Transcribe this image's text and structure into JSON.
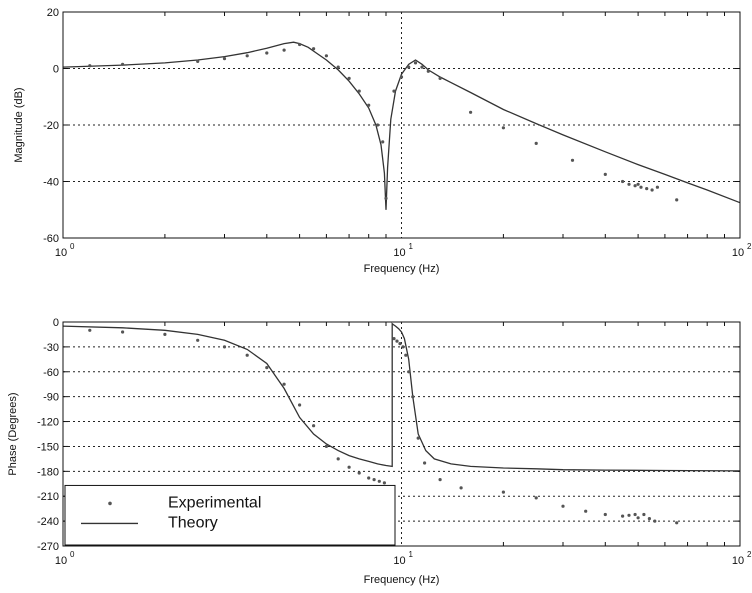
{
  "chart_data": [
    {
      "type": "line",
      "xscale": "log",
      "xlim": [
        1,
        100
      ],
      "ylim": [
        -60,
        20
      ],
      "xlabel": "Frequency (Hz)",
      "ylabel": "Magnitude (dB)",
      "xticks": [
        {
          "value": 1,
          "base": "10",
          "exp": "0"
        },
        {
          "value": 10,
          "base": "10",
          "exp": "1"
        },
        {
          "value": 100,
          "base": "10",
          "exp": "2"
        }
      ],
      "yticks": [
        {
          "value": 20,
          "label": "20"
        },
        {
          "value": 0,
          "label": "0"
        },
        {
          "value": -20,
          "label": "-20"
        },
        {
          "value": -40,
          "label": "-40"
        },
        {
          "value": -60,
          "label": "-60"
        }
      ],
      "grid": "dotted",
      "series": [
        {
          "kind": "line",
          "x": [
            1,
            1.5,
            2,
            2.5,
            3,
            3.5,
            4,
            4.5,
            4.8,
            5.0,
            5.3,
            5.6,
            6.0,
            6.5,
            7.0,
            7.5,
            8.0,
            8.4,
            8.7,
            8.9,
            9.0,
            9.1,
            9.3,
            9.6,
            10.0,
            10.5,
            11.0,
            11.5,
            12.0,
            13.0,
            14.0,
            16.0,
            20.0,
            25.0,
            30.0,
            40.0,
            50.0,
            60.0,
            70.0,
            80.0,
            100.0
          ],
          "y": [
            0.5,
            1.2,
            2.0,
            3.0,
            4.2,
            5.6,
            7.2,
            8.8,
            9.3,
            8.8,
            7.5,
            5.5,
            3.0,
            -0.5,
            -4.5,
            -9.0,
            -14.0,
            -20.0,
            -27.0,
            -37.0,
            -50.0,
            -35.0,
            -18.0,
            -8.0,
            -2.0,
            1.5,
            3.0,
            1.5,
            -0.5,
            -3.0,
            -5.0,
            -8.5,
            -14.5,
            -19.5,
            -23.5,
            -29.5,
            -34.0,
            -37.5,
            -40.5,
            -43.0,
            -47.5
          ]
        },
        {
          "kind": "points",
          "x": [
            1.2,
            1.5,
            2.5,
            3.0,
            3.5,
            4.0,
            4.5,
            5.0,
            5.5,
            6.0,
            6.5,
            7.0,
            7.5,
            8.0,
            8.5,
            8.8,
            9.0,
            9.5,
            10.0,
            10.5,
            11.0,
            11.5,
            12.0,
            13.0,
            16.0,
            20.0,
            25.0,
            32.0,
            40.0,
            45.0,
            47.0,
            49.0,
            50.0,
            51.0,
            53.0,
            55.0,
            57.0,
            65.0
          ],
          "y": [
            1.0,
            1.5,
            2.5,
            3.5,
            4.5,
            5.5,
            6.5,
            8.5,
            7.0,
            4.5,
            0.5,
            -3.5,
            -8.0,
            -13.0,
            -20.0,
            -26.0,
            -46.0,
            -8.0,
            -3.0,
            0.5,
            2.0,
            0.5,
            -1.0,
            -3.5,
            -15.5,
            -21.0,
            -26.5,
            -32.5,
            -37.5,
            -40.0,
            -41.0,
            -41.5,
            -41.0,
            -42.0,
            -42.5,
            -43.0,
            -42.0,
            -46.5
          ]
        }
      ]
    },
    {
      "type": "line",
      "xscale": "log",
      "xlim": [
        1,
        100
      ],
      "ylim": [
        -270,
        0
      ],
      "xlabel": "Frequency (Hz)",
      "ylabel": "Phase (Degrees)",
      "xticks": [
        {
          "value": 1,
          "base": "10",
          "exp": "0"
        },
        {
          "value": 10,
          "base": "10",
          "exp": "1"
        },
        {
          "value": 100,
          "base": "10",
          "exp": "2"
        }
      ],
      "yticks": [
        {
          "value": 0,
          "label": "0"
        },
        {
          "value": -30,
          "label": "-30"
        },
        {
          "value": -60,
          "label": "-60"
        },
        {
          "value": -90,
          "label": "-90"
        },
        {
          "value": -120,
          "label": "-120"
        },
        {
          "value": -150,
          "label": "-150"
        },
        {
          "value": -180,
          "label": "-180"
        },
        {
          "value": -210,
          "label": "-210"
        },
        {
          "value": -240,
          "label": "-240"
        },
        {
          "value": -270,
          "label": "-270"
        }
      ],
      "grid": "dotted",
      "legend": {
        "placement": "lower-left",
        "entries": [
          {
            "label": "Experimental",
            "marker": "point"
          },
          {
            "label": "Theory",
            "marker": "line"
          }
        ]
      },
      "series": [
        {
          "name": "Theory",
          "kind": "line",
          "x": [
            1,
            1.5,
            2,
            2.5,
            3,
            3.5,
            4.0,
            4.5,
            5.0,
            5.5,
            6.0,
            6.5,
            7.0,
            7.5,
            8.0,
            8.5,
            9.0,
            9.39,
            9.39,
            9.45,
            9.6,
            9.8,
            10.0,
            10.2,
            10.5,
            10.8,
            11.2,
            11.8,
            12.5,
            14.0,
            16.0,
            20.0,
            25.0,
            30.0,
            40.0,
            60.0,
            100.0
          ],
          "y": [
            -5,
            -7,
            -10,
            -15,
            -22,
            -33,
            -50,
            -80,
            -115,
            -135,
            -147,
            -155,
            -161,
            -165,
            -168,
            -171,
            -173,
            -174,
            -2,
            -3,
            -5,
            -8,
            -12,
            -20,
            -45,
            -90,
            -135,
            -155,
            -165,
            -171,
            -174,
            -176,
            -177,
            -178,
            -178.5,
            -179,
            -179.5
          ]
        },
        {
          "name": "Experimental",
          "kind": "points",
          "x": [
            1.2,
            1.5,
            2.0,
            2.5,
            3.0,
            3.5,
            4.0,
            4.5,
            5.0,
            5.5,
            6.0,
            6.5,
            7.0,
            7.5,
            8.0,
            8.3,
            8.6,
            8.9,
            9.5,
            9.7,
            9.9,
            10.1,
            10.3,
            10.5,
            10.8,
            11.2,
            11.7,
            13.0,
            15.0,
            20.0,
            25.0,
            30.0,
            35.0,
            40.0,
            45.0,
            47.0,
            49.0,
            50.0,
            52.0,
            54.0,
            56.0,
            65.0
          ],
          "y": [
            -10,
            -12,
            -15,
            -22,
            -30,
            -40,
            -55,
            -75,
            -100,
            -125,
            -150,
            -165,
            -175,
            -182,
            -188,
            -190,
            -192,
            -194,
            -20,
            -23,
            -26,
            -30,
            -40,
            -60,
            -90,
            -140,
            -170,
            -190,
            -200,
            -205,
            -212,
            -222,
            -228,
            -232,
            -234,
            -233,
            -232,
            -236,
            -232,
            -237,
            -240,
            -242
          ]
        }
      ]
    }
  ]
}
